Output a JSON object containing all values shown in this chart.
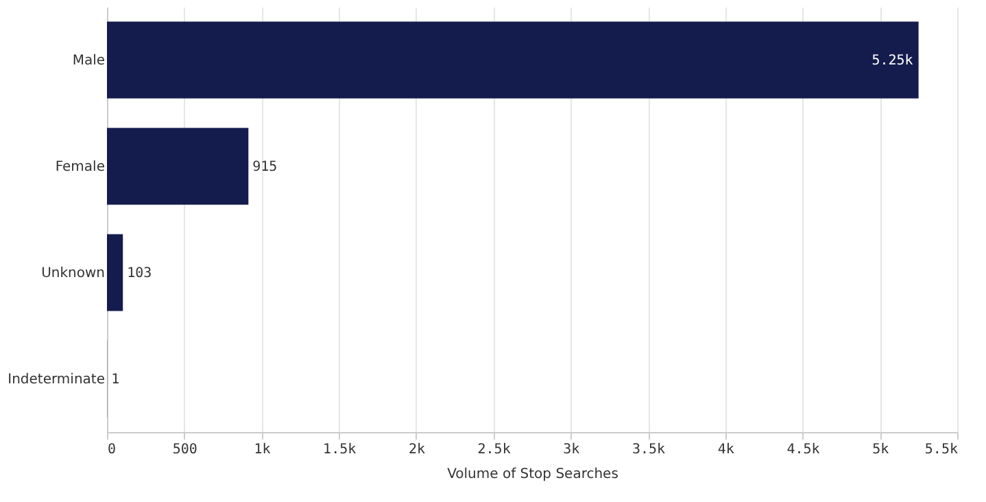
{
  "chart_data": {
    "type": "bar",
    "orientation": "horizontal",
    "xlabel": "Volume of Stop Searches",
    "categories": [
      "Male",
      "Female",
      "Unknown",
      "Indeterminate"
    ],
    "values": [
      5250,
      915,
      103,
      1
    ],
    "value_labels": [
      "5.25k",
      "915",
      "103",
      "1"
    ],
    "color": "#141b4d",
    "xlim": [
      0,
      5500
    ],
    "xticks": [
      0,
      500,
      {
        "value": 1000,
        "label": "1k"
      },
      {
        "value": 1500,
        "label": "1.5k"
      },
      {
        "value": 2000,
        "label": "2k"
      },
      {
        "value": 2500,
        "label": "2.5k"
      },
      {
        "value": 3000,
        "label": "3k"
      },
      {
        "value": 3500,
        "label": "3.5k"
      },
      {
        "value": 4000,
        "label": "4k"
      },
      {
        "value": 4500,
        "label": "4.5k"
      },
      {
        "value": 5000,
        "label": "5k"
      },
      {
        "value": 5500,
        "label": "5.5k"
      }
    ],
    "grid": "x"
  }
}
